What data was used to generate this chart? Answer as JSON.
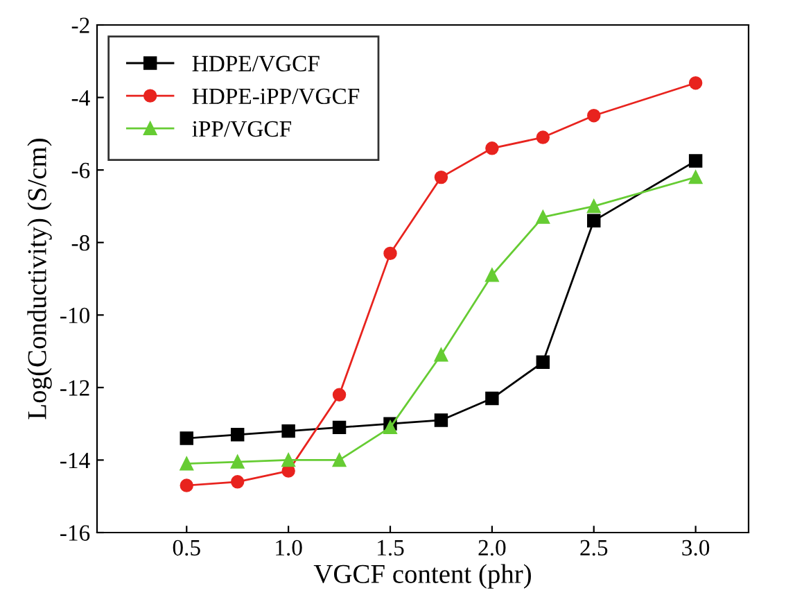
{
  "chart_data": {
    "type": "line",
    "xlabel": "VGCF content (phr)",
    "ylabel": "Log(Conductivity) (S/cm)",
    "x": [
      0.5,
      0.75,
      1.0,
      1.25,
      1.5,
      1.75,
      2.0,
      2.25,
      2.5,
      3.0
    ],
    "series": [
      {
        "name": "HDPE/VGCF",
        "color": "#000000",
        "marker": "square",
        "values": [
          -13.4,
          -13.3,
          -13.2,
          -13.1,
          -13.0,
          -12.9,
          -12.3,
          -11.3,
          -7.4,
          -5.75
        ]
      },
      {
        "name": "HDPE-iPP/VGCF",
        "color": "#e8231e",
        "marker": "circle",
        "values": [
          -14.7,
          -14.6,
          -14.3,
          -12.2,
          -8.3,
          -6.2,
          -5.4,
          -5.1,
          -4.5,
          -3.6
        ]
      },
      {
        "name": "iPP/VGCF",
        "color": "#66cc33",
        "marker": "triangle",
        "values": [
          -14.1,
          -14.05,
          -14.0,
          -14.0,
          -13.1,
          -11.1,
          -8.9,
          -7.3,
          -7.0,
          -6.2
        ]
      }
    ],
    "xlim": [
      0.06,
      3.26
    ],
    "xticks": [
      {
        "value": 0.5,
        "label": "0.5"
      },
      {
        "value": 1.0,
        "label": "1.0"
      },
      {
        "value": 1.5,
        "label": "1.5"
      },
      {
        "value": 2.0,
        "label": "2.0"
      },
      {
        "value": 2.5,
        "label": "2.5"
      },
      {
        "value": 3.0,
        "label": "3.0"
      }
    ],
    "ylim": [
      -16,
      -2
    ],
    "yticks": [
      -16,
      -14,
      -12,
      -10,
      -8,
      -6,
      -4,
      -2
    ],
    "legend": "top left",
    "grid": false
  }
}
